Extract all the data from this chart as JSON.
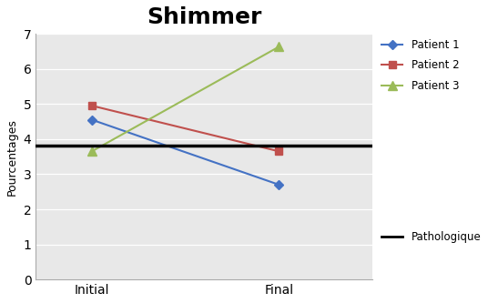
{
  "title": "Shimmer",
  "ylabel": "Pourcentages",
  "x_labels": [
    "Initial",
    "Final"
  ],
  "patient1": [
    4.55,
    2.7
  ],
  "patient2": [
    4.95,
    3.65
  ],
  "patient3": [
    3.65,
    6.63
  ],
  "patient1_color": "#4472C4",
  "patient2_color": "#C0504D",
  "patient3_color": "#9BBB59",
  "pathologique_value": 3.82,
  "ylim": [
    0,
    7
  ],
  "yticks": [
    0,
    1,
    2,
    3,
    4,
    5,
    6,
    7
  ],
  "legend_labels": [
    "Patient 1",
    "Patient 2",
    "Patient 3",
    "Pathologique"
  ],
  "title_fontsize": 18,
  "title_fontweight": "bold",
  "ylabel_fontsize": 9,
  "plot_bg_color": "#E8E8E8",
  "fig_bg_color": "#FFFFFF"
}
